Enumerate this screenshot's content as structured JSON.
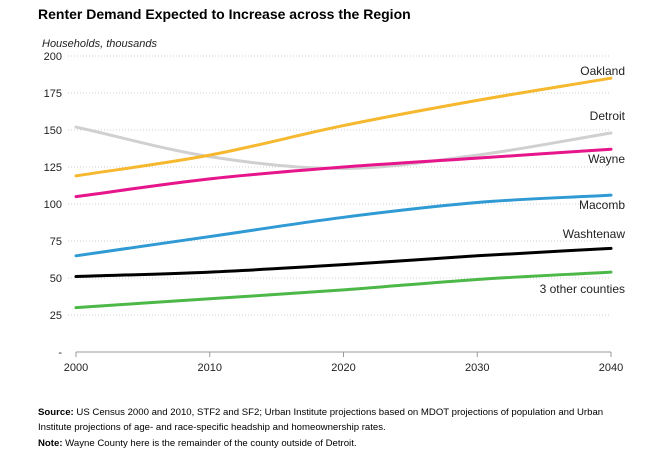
{
  "title": "Renter Demand Expected to Increase across the Region",
  "chart_data": {
    "type": "line",
    "ylabel": "Households, thousands",
    "xlabel": "",
    "x": [
      2000,
      2010,
      2020,
      2030,
      2040
    ],
    "ylim": [
      0,
      200
    ],
    "yticks": [
      200,
      175,
      150,
      125,
      100,
      75,
      50,
      25,
      "-"
    ],
    "grid": "horizontal dotted",
    "legend": "direct labels at line ends",
    "series": [
      {
        "name": "Oakland",
        "color": "#f5b82e",
        "values": [
          119,
          133,
          153,
          170,
          185
        ]
      },
      {
        "name": "Detroit",
        "color": "#d0d0d0",
        "values": [
          152,
          132,
          124,
          133,
          148
        ]
      },
      {
        "name": "Wayne",
        "color": "#e6158c",
        "values": [
          105,
          117,
          125,
          131,
          137
        ]
      },
      {
        "name": "Macomb",
        "color": "#2f9ad3",
        "values": [
          65,
          78,
          91,
          101,
          106
        ]
      },
      {
        "name": "Washtenaw",
        "color": "#000000",
        "values": [
          51,
          54,
          59,
          65,
          70
        ]
      },
      {
        "name": "3 other counties",
        "color": "#4cb848",
        "values": [
          30,
          36,
          42,
          49,
          54
        ]
      }
    ]
  },
  "notes": {
    "source_label": "Source:",
    "source_text": " US Census 2000 and 2010, STF2 and SF2; Urban Institute projections based on MDOT projections of population and Urban Institute projections of age- and race-specific headship and homeownership rates.",
    "note_label": "Note:",
    "note_text": " Wayne County here is the remainder of the county outside of Detroit."
  }
}
